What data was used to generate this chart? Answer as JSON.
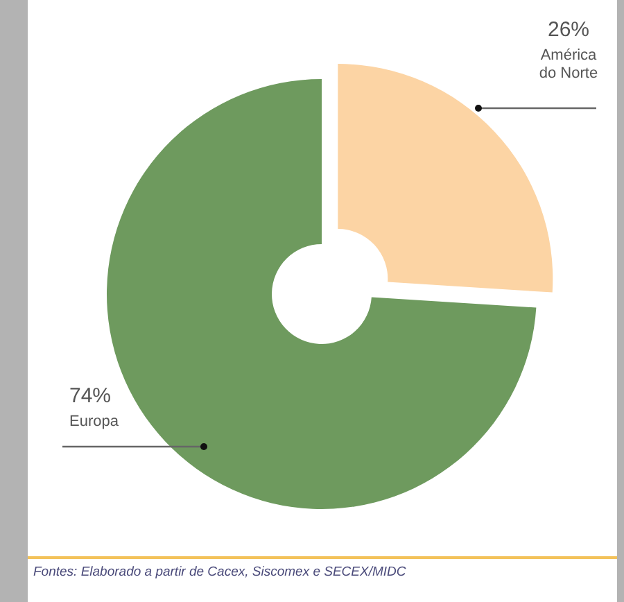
{
  "chart_data": {
    "type": "donut",
    "categories": [
      "América do Norte",
      "Europa"
    ],
    "values": [
      26,
      74
    ],
    "colors": [
      "#fcd4a4",
      "#6e9a5e"
    ],
    "value_labels": [
      "26%",
      "74%"
    ],
    "annotations": [
      "Fontes: Elaborado a partir de Cacex, Siscomex e SECEX/MIDC"
    ]
  }
}
